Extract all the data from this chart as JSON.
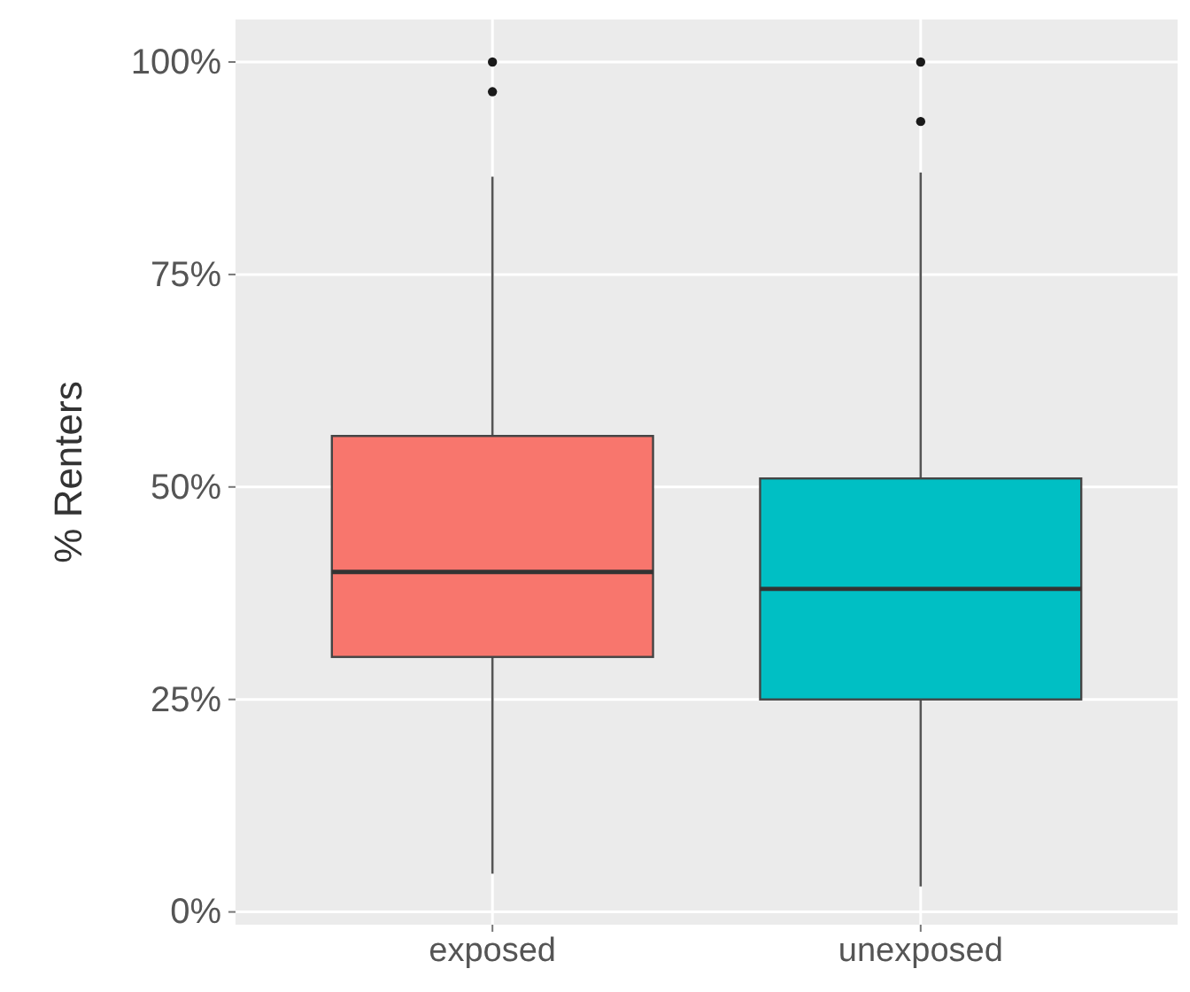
{
  "chart_data": {
    "type": "box",
    "ylabel": "% Renters",
    "categories": [
      "exposed",
      "unexposed"
    ],
    "colors": [
      "#f8766d",
      "#00bfc4"
    ],
    "boxes": [
      {
        "low": 4.5,
        "q1": 30,
        "median": 40,
        "q3": 56,
        "high": 86.5,
        "outliers": [
          96.5,
          100
        ]
      },
      {
        "low": 3,
        "q1": 25,
        "median": 38,
        "q3": 51,
        "high": 87,
        "outliers": [
          93,
          100
        ]
      }
    ],
    "ylim": [
      -1.5,
      105
    ],
    "yticks": [
      {
        "value": 0,
        "label": "0%"
      },
      {
        "value": 25,
        "label": "25%"
      },
      {
        "value": 50,
        "label": "50%"
      },
      {
        "value": 75,
        "label": "75%"
      },
      {
        "value": 100,
        "label": "100%"
      }
    ],
    "grid": true
  }
}
